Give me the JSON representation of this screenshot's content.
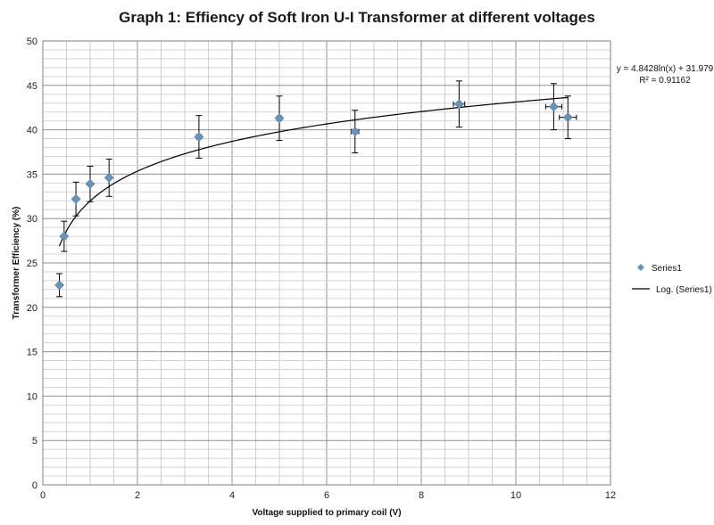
{
  "chart_data": {
    "type": "scatter",
    "title": "Graph 1: Effiency of Soft Iron U-I Transformer at different voltages",
    "xlabel": "Voltage supplied to primary coil (V)",
    "ylabel": "Transformer Efficiency (%)",
    "xlim": [
      0,
      12
    ],
    "ylim": [
      0,
      50
    ],
    "x_ticks": [
      0,
      2,
      4,
      6,
      8,
      10,
      12
    ],
    "y_ticks": [
      0,
      5,
      10,
      15,
      20,
      25,
      30,
      35,
      40,
      45,
      50
    ],
    "x_tick_labels": [
      "0",
      "2",
      "4",
      "6",
      "8",
      "10",
      "12"
    ],
    "y_tick_labels": [
      "0",
      "5",
      "10",
      "15",
      "20",
      "25",
      "30",
      "35",
      "40",
      "45",
      "50"
    ],
    "grid": true,
    "legend_position": "right",
    "series": [
      {
        "name": "Series1",
        "color": "#6a93b8",
        "marker": "diamond",
        "points": [
          {
            "x": 0.35,
            "y": 22.5,
            "yerr": 1.3,
            "xerr": 0
          },
          {
            "x": 0.45,
            "y": 28.0,
            "yerr": 1.7,
            "xerr": 0
          },
          {
            "x": 0.7,
            "y": 32.2,
            "yerr": 1.9,
            "xerr": 0
          },
          {
            "x": 1.0,
            "y": 33.9,
            "yerr": 2.0,
            "xerr": 0
          },
          {
            "x": 1.4,
            "y": 34.6,
            "yerr": 2.1,
            "xerr": 0
          },
          {
            "x": 3.3,
            "y": 39.2,
            "yerr": 2.4,
            "xerr": 0.05
          },
          {
            "x": 5.0,
            "y": 41.3,
            "yerr": 2.5,
            "xerr": 0.05
          },
          {
            "x": 6.6,
            "y": 39.8,
            "yerr": 2.4,
            "xerr": 0.08
          },
          {
            "x": 8.8,
            "y": 42.9,
            "yerr": 2.6,
            "xerr": 0.12
          },
          {
            "x": 10.8,
            "y": 42.6,
            "yerr": 2.6,
            "xerr": 0.17
          },
          {
            "x": 11.1,
            "y": 41.4,
            "yerr": 2.4,
            "xerr": 0.18
          }
        ]
      }
    ],
    "trendline": {
      "name": "Log. (Series1)",
      "type": "logarithmic",
      "a": 4.8428,
      "b": 31.979,
      "x_range": [
        0.35,
        11.1
      ],
      "color": "#000000"
    },
    "annotations": {
      "equation": "y = 4.8428ln(x) + 31.979",
      "r_squared": "R² = 0.91162"
    }
  }
}
